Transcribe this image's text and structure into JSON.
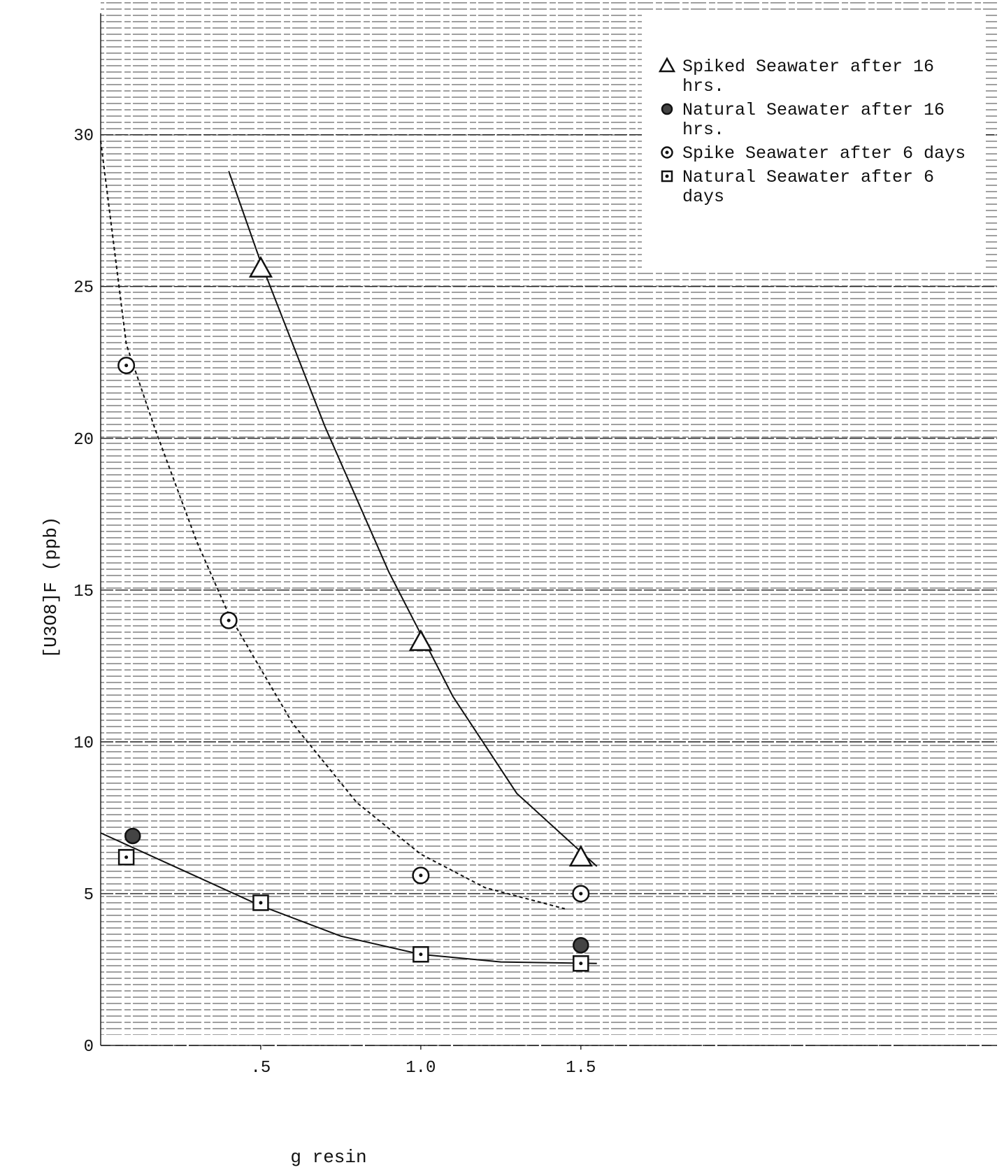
{
  "chart_data": {
    "type": "scatter",
    "x_label": "g resin",
    "y_label": "[U3O8]F (ppb)",
    "xlim": [
      0,
      2.8
    ],
    "ylim": [
      0,
      34
    ],
    "xticks": [
      {
        "value": 0.5,
        "label": ".5"
      },
      {
        "value": 1.0,
        "label": "1.0"
      },
      1.5
    ],
    "yticks": [
      0,
      5,
      10,
      15,
      20,
      25,
      30
    ],
    "grid": true,
    "legend": "upper right",
    "series": [
      {
        "name": "Spiked Seawater after 16 hrs.",
        "marker": "triangle",
        "color": "#111111",
        "x": [
          0.5,
          1.0,
          1.5
        ],
        "values": [
          25.6,
          13.3,
          6.2
        ]
      },
      {
        "name": "Natural Seawater after 16 hrs.",
        "marker": "filled-circle",
        "color": "#111111",
        "x": [
          0.1,
          1.5
        ],
        "values": [
          6.9,
          3.3
        ]
      },
      {
        "name": "Spike Seawater after 6 days",
        "marker": "dotted-circle",
        "color": "#111111",
        "x": [
          0.08,
          0.4,
          1.0,
          1.5
        ],
        "values": [
          22.4,
          14.0,
          5.6,
          5.0
        ]
      },
      {
        "name": "Natural Seawater after 6 days",
        "marker": "dotted-square",
        "color": "#111111",
        "x": [
          0.08,
          0.5,
          1.0,
          1.5
        ],
        "values": [
          6.2,
          4.7,
          3.0,
          2.7
        ]
      }
    ],
    "fit_curves": [
      {
        "dashed": false,
        "x": [
          0.4,
          0.5,
          0.7,
          0.9,
          1.1,
          1.3,
          1.55
        ],
        "values": [
          28.8,
          25.8,
          20.4,
          15.6,
          11.5,
          8.3,
          5.9
        ]
      },
      {
        "dashed": true,
        "x": [
          0,
          0.08,
          0.17,
          0.3,
          0.4,
          0.6,
          0.8,
          1.0,
          1.2,
          1.45
        ],
        "values": [
          29.8,
          23.1,
          20.3,
          16.6,
          14.2,
          10.6,
          8.0,
          6.3,
          5.2,
          4.5
        ]
      },
      {
        "dashed": false,
        "x": [
          0,
          0.25,
          0.5,
          0.75,
          1.0,
          1.25,
          1.55
        ],
        "values": [
          7.0,
          5.8,
          4.6,
          3.6,
          3.0,
          2.75,
          2.7
        ]
      }
    ]
  }
}
